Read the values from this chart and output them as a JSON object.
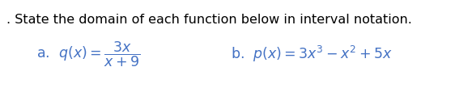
{
  "title_line": ". State the domain of each function below in interval notation.",
  "part_a_text": "a.  $q(x) = \\dfrac{3x}{x+9}$",
  "part_b_text": "b.  $p(x) = 3x^3 - x^2 + 5x$",
  "background_color": "#ffffff",
  "text_color": "#4472c4",
  "title_color": "#000000",
  "font_size_title": 11.5,
  "font_size_parts": 12.5
}
